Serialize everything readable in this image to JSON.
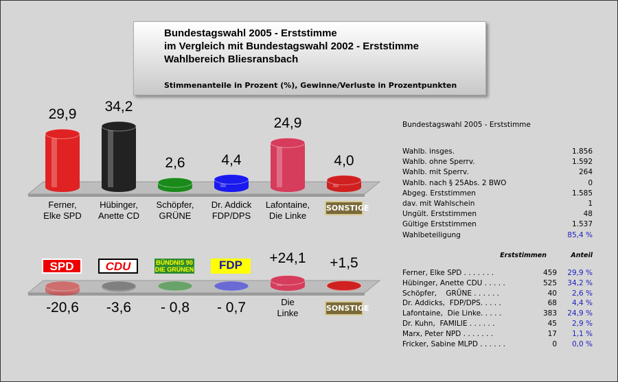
{
  "header": {
    "title": "Bundestagswahl 2005 - Erststimme\nim Vergleich mit Bundestagswahl 2002 - Erststimme\nWahlbereich Bliesransbach",
    "subtitle": "Stimmenanteile in Prozent (%), Gewinne/Verluste in Prozentpunkten"
  },
  "chart_data": [
    {
      "type": "bar",
      "categories": [
        "Ferner,\nElke SPD",
        "Hübinger,\nAnette CD",
        "Schöpfer,\nGRÜNE",
        "Dr. Addick\nFDP/DPS",
        "Lafontaine,\nDie Linke",
        "SONSTIGE"
      ],
      "values": [
        29.9,
        34.2,
        2.6,
        4.4,
        24.9,
        4.0
      ],
      "value_labels": [
        "29,9",
        "34,2",
        "2,6",
        "4,4",
        "24,9",
        "4,0"
      ],
      "colors": [
        "#e02222",
        "#222222",
        "#1a8a1a",
        "#1a1aee",
        "#d63c5c",
        "#d02020"
      ]
    },
    {
      "type": "bar",
      "categories": [
        "SPD",
        "CDU",
        "BÜNDNIS 90\nDIE GRÜNEN",
        "FDP",
        "Die\nLinke",
        "SONSTIGE"
      ],
      "values": [
        -20.6,
        -3.6,
        -0.8,
        -0.7,
        24.1,
        1.5
      ],
      "value_labels": [
        "-20,6",
        "-3,6",
        "- 0,8",
        "- 0,7",
        "+24,1",
        "+1,5"
      ],
      "colors": [
        "#e02222",
        "#444444",
        "#1a8a1a",
        "#1a1aee",
        "#d63c5c",
        "#d02020"
      ]
    }
  ],
  "stats": {
    "title": "Bundestagswahl 2005 - Erststimme",
    "rows": [
      [
        "Wahlb. insges.",
        "1.856"
      ],
      [
        "Wahlb. ohne Sperrv.",
        "1.592"
      ],
      [
        "Wahlb. mit Sperrv.",
        "264"
      ],
      [
        "Wahlb. nach § 25Abs. 2 BWO",
        "0"
      ],
      [
        "Abgeg. Erststimmen",
        "1.585"
      ],
      [
        "dav. mit Wahlschein",
        "1"
      ],
      [
        "Ungült. Erststimmen",
        "48"
      ],
      [
        "Gültige Erststimmen",
        "1.537"
      ],
      [
        "Wahlbeteiligung",
        "85,4 %"
      ]
    ]
  },
  "candidates": {
    "headers": [
      "Erststimmen",
      "Anteil"
    ],
    "rows": [
      [
        "Ferner, Elke SPD . . . . . . .",
        "459",
        "29,9 %"
      ],
      [
        "Hübinger, Anette CDU . . . . .",
        "525",
        "34,2 %"
      ],
      [
        "Schöpfer,    GRÜNE . . . . . .",
        "40",
        "2,6 %"
      ],
      [
        "Dr. Addicks,  FDP/DPS. . . . .",
        "68",
        "4,4 %"
      ],
      [
        "Lafontaine,  Die Linke. . . . .",
        "383",
        "24,9 %"
      ],
      [
        "Dr. Kuhn,  FAMILIE . . . . . .",
        "45",
        "2,9 %"
      ],
      [
        "Marx, Peter NPD . . . . . . .",
        "17",
        "1,1 %"
      ],
      [
        "Fricker, Sabine MLPD . . . . . .",
        "0",
        "0,0 %"
      ]
    ]
  }
}
